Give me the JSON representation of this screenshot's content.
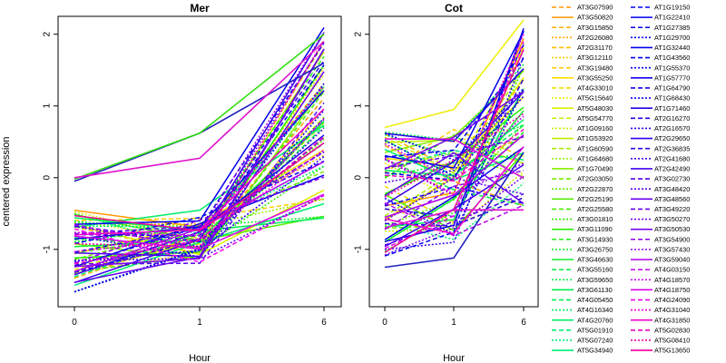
{
  "chart_data": {
    "type": "line",
    "ylabel": "centered expression",
    "xlabel": "Hour",
    "x_ticks": [
      "0",
      "1",
      "6"
    ],
    "y_ticks": [
      "-1",
      "0",
      "1",
      "2"
    ],
    "ylim": [
      -1.8,
      2.25
    ],
    "panels": [
      {
        "title": "Mer",
        "highlight_series": [
          {
            "x": [
              "0",
              "1",
              "6"
            ],
            "y": [
              -0.05,
              0.62,
              1.6
            ],
            "color": "#2020c0"
          },
          {
            "x": [
              "0",
              "1",
              "6"
            ],
            "y": [
              -0.02,
              0.62,
              2.0
            ],
            "color": "#33dd11"
          },
          {
            "x": [
              "0",
              "1",
              "6"
            ],
            "y": [
              0.0,
              0.27,
              1.9
            ],
            "color": "#dd11cc"
          }
        ],
        "bulk_band": {
          "t0": [
            -1.6,
            -0.45
          ],
          "t1": [
            -1.2,
            -0.45
          ],
          "t6": [
            -0.6,
            2.1
          ]
        }
      },
      {
        "title": "Cot",
        "highlight_series": [
          {
            "x": [
              "0",
              "1",
              "6"
            ],
            "y": [
              -1.25,
              -1.12,
              0.35
            ],
            "color": "#2020c0"
          },
          {
            "x": [
              "0",
              "1",
              "6"
            ],
            "y": [
              0.7,
              0.95,
              2.2
            ],
            "color": "#eeee11"
          },
          {
            "x": [
              "0",
              "1",
              "6"
            ],
            "y": [
              -0.7,
              -0.45,
              -0.45
            ],
            "color": "#dd11cc"
          }
        ],
        "bulk_band": {
          "t0": [
            -1.1,
            0.65
          ],
          "t1": [
            -0.95,
            0.9
          ],
          "t6": [
            -0.5,
            2.1
          ]
        }
      }
    ],
    "legend_col1": [
      {
        "label": "AT3G07590",
        "color": "#ff9900",
        "dash": "dash"
      },
      {
        "label": "AT3G50820",
        "color": "#ff9900",
        "dash": "solid"
      },
      {
        "label": "AT3G15850",
        "color": "#ffaa00",
        "dash": "dash"
      },
      {
        "label": "AT2G26080",
        "color": "#ffaa00",
        "dash": "dot"
      },
      {
        "label": "AT2G31170",
        "color": "#ffbb00",
        "dash": "dash"
      },
      {
        "label": "AT3G12110",
        "color": "#ffcc00",
        "dash": "dot"
      },
      {
        "label": "AT3G19480",
        "color": "#ffcc00",
        "dash": "dash"
      },
      {
        "label": "AT3G55250",
        "color": "#ffdd00",
        "dash": "solid"
      },
      {
        "label": "AT4G33010",
        "color": "#eedd00",
        "dash": "dash"
      },
      {
        "label": "AT5G15640",
        "color": "#eeee00",
        "dash": "dot"
      },
      {
        "label": "AT5G48030",
        "color": "#ddee00",
        "dash": "solid"
      },
      {
        "label": "AT5G54770",
        "color": "#ccee00",
        "dash": "dash"
      },
      {
        "label": "AT1G09160",
        "color": "#ccee00",
        "dash": "dot"
      },
      {
        "label": "AT1G53920",
        "color": "#bbee00",
        "dash": "solid"
      },
      {
        "label": "AT1G60590",
        "color": "#aaee00",
        "dash": "dash"
      },
      {
        "label": "AT1G64680",
        "color": "#99ee00",
        "dash": "dot"
      },
      {
        "label": "AT1G70490",
        "color": "#88ee00",
        "dash": "solid"
      },
      {
        "label": "AT2G03050",
        "color": "#77ee00",
        "dash": "dash"
      },
      {
        "label": "AT2G22870",
        "color": "#66ee00",
        "dash": "dot"
      },
      {
        "label": "AT2G25190",
        "color": "#55ee00",
        "dash": "solid"
      },
      {
        "label": "AT2G25580",
        "color": "#44ee00",
        "dash": "dash"
      },
      {
        "label": "AT3G01810",
        "color": "#33ee00",
        "dash": "dot"
      },
      {
        "label": "AT3G11090",
        "color": "#22ee00",
        "dash": "solid"
      },
      {
        "label": "AT3G14930",
        "color": "#22ee11",
        "dash": "dash"
      },
      {
        "label": "AT3G26750",
        "color": "#11ee22",
        "dash": "dot"
      },
      {
        "label": "AT3G46630",
        "color": "#11ee33",
        "dash": "solid"
      },
      {
        "label": "AT3G55160",
        "color": "#00ee44",
        "dash": "dash"
      },
      {
        "label": "AT3G59650",
        "color": "#00ee44",
        "dash": "dot"
      },
      {
        "label": "AT3G61130",
        "color": "#00ee55",
        "dash": "solid"
      },
      {
        "label": "AT4G05450",
        "color": "#00ee55",
        "dash": "dash"
      },
      {
        "label": "AT4G16340",
        "color": "#00ee66",
        "dash": "dot"
      },
      {
        "label": "AT4G20760",
        "color": "#00ee66",
        "dash": "solid"
      },
      {
        "label": "AT5G01910",
        "color": "#00ee77",
        "dash": "dash"
      },
      {
        "label": "AT5G07240",
        "color": "#00ee77",
        "dash": "dot"
      },
      {
        "label": "AT5G34940",
        "color": "#00ee77",
        "dash": "solid"
      }
    ],
    "legend_col2": [
      {
        "label": "AT1G19150",
        "color": "#0000ee",
        "dash": "dash"
      },
      {
        "label": "AT1G22410",
        "color": "#0000ee",
        "dash": "solid"
      },
      {
        "label": "AT1G27385",
        "color": "#0000ee",
        "dash": "dash"
      },
      {
        "label": "AT1G29700",
        "color": "#0000ee",
        "dash": "dot"
      },
      {
        "label": "AT1G32440",
        "color": "#0000ee",
        "dash": "solid"
      },
      {
        "label": "AT1G43560",
        "color": "#0000ee",
        "dash": "dash"
      },
      {
        "label": "AT1G55370",
        "color": "#0000ee",
        "dash": "dot"
      },
      {
        "label": "AT1G57770",
        "color": "#1100ee",
        "dash": "solid"
      },
      {
        "label": "AT1G64790",
        "color": "#1100ee",
        "dash": "dash"
      },
      {
        "label": "AT1G68430",
        "color": "#1100ee",
        "dash": "dot"
      },
      {
        "label": "AT1G71460",
        "color": "#2200ee",
        "dash": "solid"
      },
      {
        "label": "AT2G16270",
        "color": "#2200ee",
        "dash": "dash"
      },
      {
        "label": "AT2G16570",
        "color": "#2200ee",
        "dash": "dot"
      },
      {
        "label": "AT2G29650",
        "color": "#3300ee",
        "dash": "solid"
      },
      {
        "label": "AT2G36835",
        "color": "#3300ee",
        "dash": "dash"
      },
      {
        "label": "AT2G41680",
        "color": "#4400ee",
        "dash": "dot"
      },
      {
        "label": "AT2G42490",
        "color": "#4400ee",
        "dash": "solid"
      },
      {
        "label": "AT3G02730",
        "color": "#5500ee",
        "dash": "dash"
      },
      {
        "label": "AT3G48420",
        "color": "#5500ee",
        "dash": "dot"
      },
      {
        "label": "AT3G48560",
        "color": "#6600ee",
        "dash": "solid"
      },
      {
        "label": "AT3G49220",
        "color": "#6600ee",
        "dash": "dash"
      },
      {
        "label": "AT3G50270",
        "color": "#7700ee",
        "dash": "dot"
      },
      {
        "label": "AT3G50530",
        "color": "#7700ee",
        "dash": "solid"
      },
      {
        "label": "AT3G54900",
        "color": "#8800ee",
        "dash": "dash"
      },
      {
        "label": "AT3G57430",
        "color": "#9900ee",
        "dash": "dot"
      },
      {
        "label": "AT3G59040",
        "color": "#aa00ee",
        "dash": "solid"
      },
      {
        "label": "AT4G03150",
        "color": "#bb00ee",
        "dash": "dash"
      },
      {
        "label": "AT4G18570",
        "color": "#cc00ee",
        "dash": "dot"
      },
      {
        "label": "AT4G18750",
        "color": "#dd00ee",
        "dash": "solid"
      },
      {
        "label": "AT4G24090",
        "color": "#ee00ee",
        "dash": "dash"
      },
      {
        "label": "AT4G31040",
        "color": "#ee00dd",
        "dash": "dot"
      },
      {
        "label": "AT4G31850",
        "color": "#ee00cc",
        "dash": "solid"
      },
      {
        "label": "AT5G02830",
        "color": "#ee00bb",
        "dash": "dash"
      },
      {
        "label": "AT5G08410",
        "color": "#ee00aa",
        "dash": "dot"
      },
      {
        "label": "AT5G13650",
        "color": "#ee0099",
        "dash": "solid"
      }
    ]
  }
}
